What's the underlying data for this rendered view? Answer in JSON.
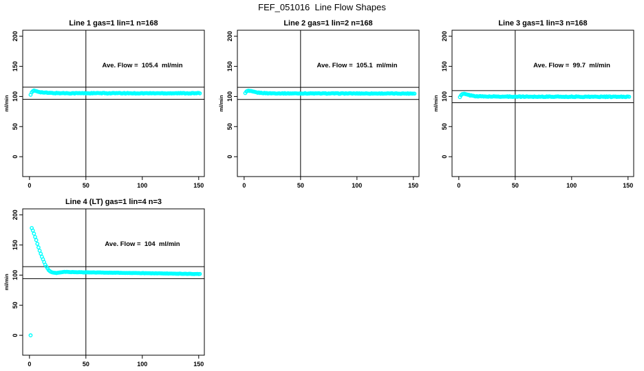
{
  "figure": {
    "title": "FEF_051016  Line Flow Shapes",
    "background_color": "#ffffff",
    "point_color": "#00ffff",
    "axis_color": "#000000"
  },
  "chart_data": [
    {
      "type": "scatter",
      "panel": "top-left",
      "title": "Line 1 gas=1 lin=1 n=168",
      "annotation": "Ave. Flow =  105.4  ml/min",
      "ave_flow_ml_min": 105.4,
      "n": 168,
      "ylabel": "ml/min",
      "x_ticks": [
        "0",
        "50",
        "100",
        "150"
      ],
      "y_ticks": [
        "0",
        "50",
        "100",
        "150",
        "200"
      ],
      "x_tick_values": [
        0,
        50,
        100,
        150
      ],
      "y_tick_values": [
        0,
        50,
        100,
        150,
        200
      ],
      "xlim": [
        -6,
        155
      ],
      "ylim": [
        -33,
        210
      ],
      "vline_x": 50,
      "hlines_y": [
        115.4,
        95.4
      ],
      "series": {
        "name": "flow",
        "x_step": 1,
        "jitter": 0.6,
        "keypoints": [
          [
            1,
            103.0
          ],
          [
            2,
            106.5
          ],
          [
            3,
            108.6
          ],
          [
            4,
            109.5
          ],
          [
            5,
            109.3
          ],
          [
            7,
            108.4
          ],
          [
            10,
            107.2
          ],
          [
            13,
            106.4
          ],
          [
            17,
            105.9
          ],
          [
            22,
            105.6
          ],
          [
            40,
            105.4
          ],
          [
            70,
            105.4
          ],
          [
            100,
            105.3
          ],
          [
            130,
            105.4
          ],
          [
            151,
            105.3
          ]
        ]
      },
      "outliers": []
    },
    {
      "type": "scatter",
      "panel": "top-middle",
      "title": "Line 2 gas=1 lin=2 n=168",
      "annotation": "Ave. Flow =  105.1  ml/min",
      "ave_flow_ml_min": 105.1,
      "n": 168,
      "ylabel": "ml/min",
      "x_ticks": [
        "0",
        "50",
        "100",
        "150"
      ],
      "y_ticks": [
        "0",
        "50",
        "100",
        "150",
        "200"
      ],
      "x_tick_values": [
        0,
        50,
        100,
        150
      ],
      "y_tick_values": [
        0,
        50,
        100,
        150,
        200
      ],
      "xlim": [
        -6,
        155
      ],
      "ylim": [
        -33,
        210
      ],
      "vline_x": 50,
      "hlines_y": [
        115.1,
        95.1
      ],
      "series": {
        "name": "flow",
        "x_step": 1,
        "jitter": 0.5,
        "keypoints": [
          [
            1,
            106.0
          ],
          [
            2,
            108.0
          ],
          [
            3,
            109.2
          ],
          [
            4,
            109.4
          ],
          [
            6,
            108.7
          ],
          [
            9,
            107.4
          ],
          [
            12,
            106.4
          ],
          [
            16,
            105.8
          ],
          [
            22,
            105.3
          ],
          [
            40,
            105.1
          ],
          [
            70,
            105.0
          ],
          [
            100,
            105.0
          ],
          [
            130,
            104.9
          ],
          [
            151,
            104.9
          ]
        ]
      },
      "outliers": []
    },
    {
      "type": "scatter",
      "panel": "top-right",
      "title": "Line 3 gas=1 lin=3 n=168",
      "annotation": "Ave. Flow =  99.7  ml/min",
      "ave_flow_ml_min": 99.7,
      "n": 168,
      "ylabel": "ml/min",
      "x_ticks": [
        "0",
        "50",
        "100",
        "150"
      ],
      "y_ticks": [
        "0",
        "50",
        "100",
        "150",
        "200"
      ],
      "x_tick_values": [
        0,
        50,
        100,
        150
      ],
      "y_tick_values": [
        0,
        50,
        100,
        150,
        200
      ],
      "xlim": [
        -6,
        155
      ],
      "ylim": [
        -33,
        210
      ],
      "vline_x": 50,
      "hlines_y": [
        109.7,
        89.7
      ],
      "series": {
        "name": "flow",
        "x_step": 1,
        "jitter": 0.6,
        "keypoints": [
          [
            1,
            99.0
          ],
          [
            2,
            101.8
          ],
          [
            3,
            103.6
          ],
          [
            4,
            104.3
          ],
          [
            5,
            104.1
          ],
          [
            7,
            103.2
          ],
          [
            10,
            101.9
          ],
          [
            13,
            100.9
          ],
          [
            17,
            100.3
          ],
          [
            22,
            100.0
          ],
          [
            40,
            99.8
          ],
          [
            70,
            99.7
          ],
          [
            100,
            99.6
          ],
          [
            130,
            99.5
          ],
          [
            151,
            99.5
          ]
        ]
      },
      "outliers": []
    },
    {
      "type": "scatter",
      "panel": "bottom-left",
      "title": "Line 4 (LT) gas=1 lin=4 n=3",
      "annotation": "Ave. Flow =  104  ml/min",
      "ave_flow_ml_min": 104,
      "n": 3,
      "ylabel": "ml/min",
      "x_ticks": [
        "0",
        "50",
        "100",
        "150"
      ],
      "y_ticks": [
        "0",
        "50",
        "100",
        "150",
        "200"
      ],
      "x_tick_values": [
        0,
        50,
        100,
        150
      ],
      "y_tick_values": [
        0,
        50,
        100,
        150,
        200
      ],
      "xlim": [
        -6,
        155
      ],
      "ylim": [
        -33,
        210
      ],
      "vline_x": 50,
      "hlines_y": [
        114,
        94
      ],
      "series": {
        "name": "flow",
        "x_step": 1,
        "jitter": 0.25,
        "keypoints": [
          [
            2,
            178
          ],
          [
            3,
            174
          ],
          [
            4,
            169
          ],
          [
            5,
            163.5
          ],
          [
            6,
            158
          ],
          [
            7,
            152
          ],
          [
            8,
            146
          ],
          [
            9,
            140.5
          ],
          [
            10,
            135.5
          ],
          [
            11,
            130.5
          ],
          [
            12,
            126
          ],
          [
            13,
            121.5
          ],
          [
            14,
            117.5
          ],
          [
            15,
            114
          ],
          [
            16,
            111
          ],
          [
            17,
            108.5
          ],
          [
            18,
            106.6
          ],
          [
            19,
            105.3
          ],
          [
            20,
            104.4
          ],
          [
            22,
            103.7
          ],
          [
            24,
            103.5
          ],
          [
            26,
            103.9
          ],
          [
            28,
            104.7
          ],
          [
            30,
            105.2
          ],
          [
            33,
            105.3
          ],
          [
            36,
            105.1
          ],
          [
            40,
            104.9
          ],
          [
            50,
            104.5
          ],
          [
            60,
            104.3
          ],
          [
            70,
            104.1
          ],
          [
            80,
            103.8
          ],
          [
            90,
            103.5
          ],
          [
            100,
            103.2
          ],
          [
            110,
            103.0
          ],
          [
            120,
            102.7
          ],
          [
            130,
            102.4
          ],
          [
            140,
            102.1
          ],
          [
            151,
            101.8
          ]
        ]
      },
      "outliers": [
        [
          1,
          0
        ]
      ]
    }
  ]
}
